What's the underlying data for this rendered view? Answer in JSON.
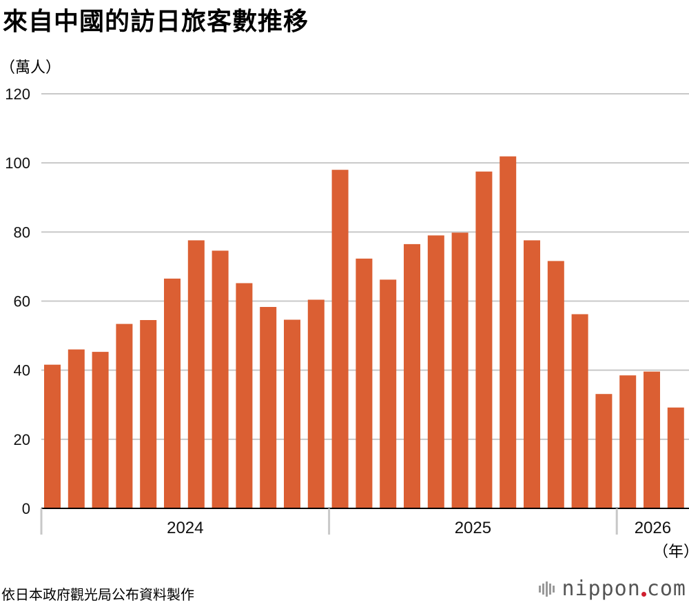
{
  "title": "來自中國的訪日旅客數推移",
  "unit_label": "（萬人）",
  "year_unit_label": "（年）",
  "source": "依日本政府觀光局公布資料製作",
  "brand": {
    "name_left": "nippon",
    "name_right": "com"
  },
  "colors": {
    "bar": "#db5f33",
    "grid": "#c8c8c8",
    "axis": "#000000",
    "divider": "#c8c8c8",
    "brand_dot": "#d01f2f"
  },
  "chart_data": {
    "type": "bar",
    "title": "來自中國的訪日旅客數推移",
    "ylabel": "（萬人）",
    "xlabel": "（年）",
    "ylim": [
      0,
      120
    ],
    "yticks": [
      0,
      20,
      40,
      60,
      80,
      100,
      120
    ],
    "grid": true,
    "years": [
      {
        "label": "2024",
        "months": 12
      },
      {
        "label": "2025",
        "months": 12
      },
      {
        "label": "2026",
        "months": 3
      }
    ],
    "values": [
      41.6,
      46.0,
      45.3,
      53.4,
      54.5,
      66.5,
      77.6,
      74.6,
      65.2,
      58.3,
      54.6,
      60.4,
      98.0,
      72.3,
      66.2,
      76.5,
      79.0,
      79.8,
      97.5,
      101.9,
      77.6,
      71.6,
      56.2,
      33.1,
      38.5,
      39.6,
      29.2
    ]
  }
}
